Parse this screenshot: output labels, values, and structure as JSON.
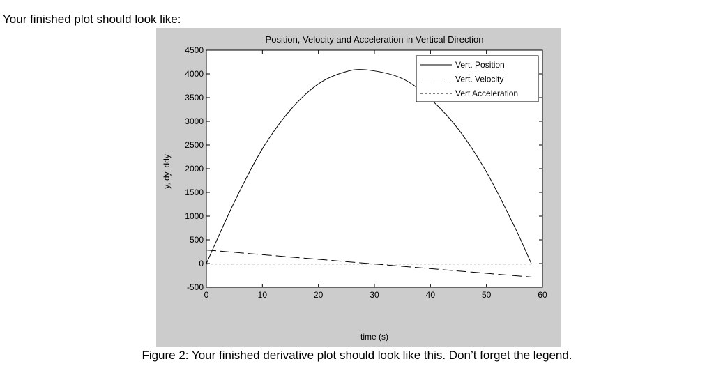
{
  "intro_text": "Your finished plot should look like:",
  "caption": "Figure 2: Your finished derivative plot should look like this.  Don’t forget the legend.",
  "chart_data": {
    "type": "line",
    "title": "Position, Velocity and Acceleration in Vertical Direction",
    "xlabel": "time (s)",
    "ylabel": "y, dy, ddy",
    "xlim": [
      0,
      60
    ],
    "ylim": [
      -500,
      4500
    ],
    "xticks": [
      0,
      10,
      20,
      30,
      40,
      50,
      60
    ],
    "yticks": [
      -500,
      0,
      500,
      1000,
      1500,
      2000,
      2500,
      3000,
      3500,
      4000,
      4500
    ],
    "grid": false,
    "legend_position": "top-right",
    "series": [
      {
        "name": "Vert. Position",
        "style": "solid",
        "color": "#000000",
        "x": [
          0,
          5,
          10,
          15,
          20,
          25,
          29,
          35,
          40,
          45,
          50,
          55,
          58
        ],
        "y": [
          0,
          1300,
          2420,
          3240,
          3790,
          4050,
          4080,
          3900,
          3470,
          2830,
          1930,
          780,
          0
        ]
      },
      {
        "name": "Vert. Velocity",
        "style": "dashed",
        "color": "#000000",
        "x": [
          0,
          58
        ],
        "y": [
          285,
          -285
        ]
      },
      {
        "name": "Vert Acceleration",
        "style": "dotted",
        "color": "#000000",
        "x": [
          0,
          58
        ],
        "y": [
          -9.8,
          -9.8
        ]
      }
    ]
  }
}
